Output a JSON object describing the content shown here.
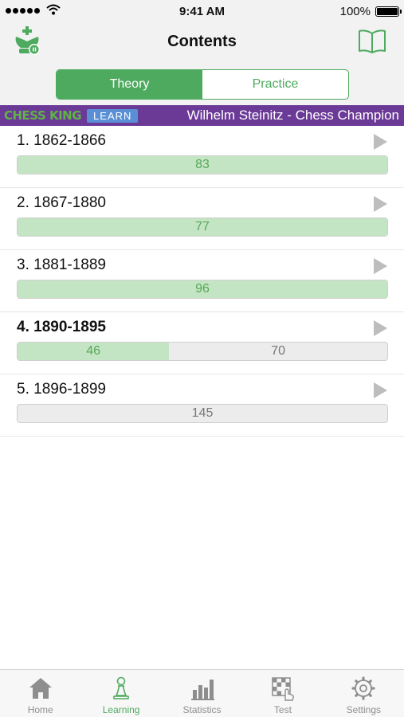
{
  "status_bar": {
    "time": "9:41 AM",
    "battery": "100%"
  },
  "nav": {
    "title": "Contents",
    "left_icon": "chess-king-logo-icon",
    "right_icon": "book-icon"
  },
  "segments": [
    {
      "label": "Theory",
      "active": true
    },
    {
      "label": "Practice",
      "active": false
    }
  ],
  "banner": {
    "brand": "CHESS KING",
    "badge": "LEARN",
    "title": "Wilhelm Steinitz - Chess Champion"
  },
  "chapters": [
    {
      "title": "1. 1862-1866",
      "done": "83",
      "remaining": "",
      "done_fraction": 1.0,
      "bold": false
    },
    {
      "title": "2. 1867-1880",
      "done": "77",
      "remaining": "",
      "done_fraction": 1.0,
      "bold": false
    },
    {
      "title": "3. 1881-1889",
      "done": "96",
      "remaining": "",
      "done_fraction": 1.0,
      "bold": false
    },
    {
      "title": "4. 1890-1895",
      "done": "46",
      "remaining": "70",
      "done_fraction": 0.41,
      "bold": true
    },
    {
      "title": "5. 1896-1899",
      "done": "",
      "remaining": "145",
      "done_fraction": 0.0,
      "bold": false
    }
  ],
  "tabs": [
    {
      "label": "Home",
      "icon": "home-icon",
      "active": false
    },
    {
      "label": "Learning",
      "icon": "pawn-icon",
      "active": true
    },
    {
      "label": "Statistics",
      "icon": "bar-chart-icon",
      "active": false
    },
    {
      "label": "Test",
      "icon": "board-hand-icon",
      "active": false
    },
    {
      "label": "Settings",
      "icon": "gear-icon",
      "active": false
    }
  ],
  "colors": {
    "accent": "#4eaa5e",
    "banner": "#6b3a97",
    "progress_fill": "#c3e5c3"
  }
}
